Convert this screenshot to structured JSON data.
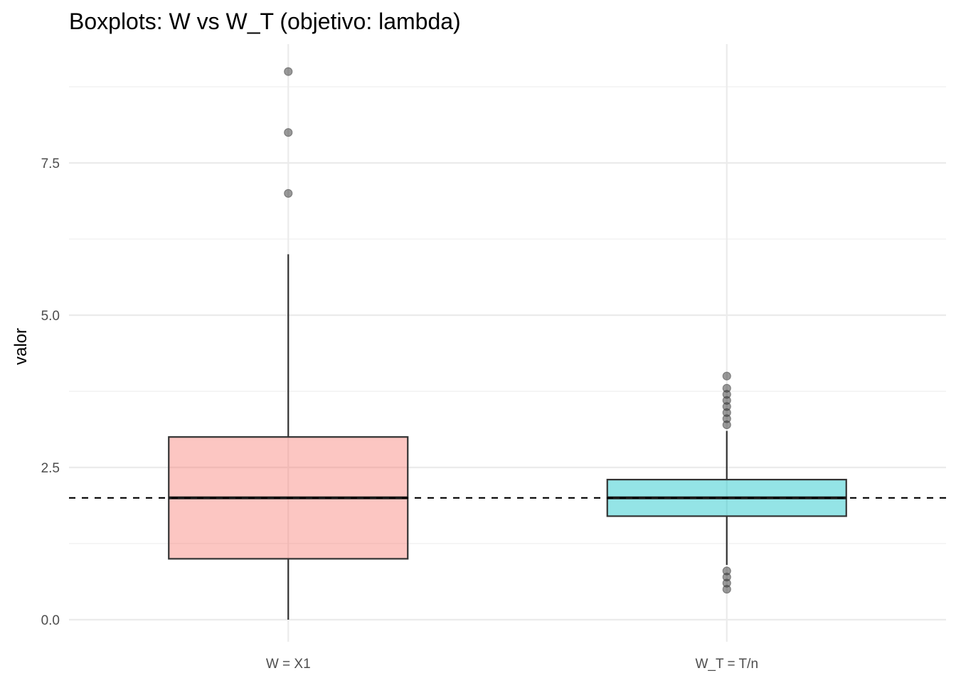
{
  "chart_data": {
    "type": "boxplot",
    "title": "Boxplots: W vs W_T (objetivo: lambda)",
    "xlabel": "",
    "ylabel": "valor",
    "ylim": [
      -0.35,
      9.4
    ],
    "y_ticks": [
      0.0,
      2.5,
      5.0,
      7.5
    ],
    "y_tick_labels": [
      "0.0",
      "2.5",
      "5.0",
      "7.5"
    ],
    "grid": true,
    "legend": "none",
    "reference_line": {
      "y": 2.0,
      "style": "dashed"
    },
    "categories": [
      "W = X1",
      "W_T = T/n"
    ],
    "boxes": [
      {
        "name": "W = X1",
        "color": "#F8766D",
        "min": 0.0,
        "q1": 1.0,
        "median": 2.0,
        "q3": 3.0,
        "max": 6.0,
        "outliers": [
          7,
          8,
          9
        ]
      },
      {
        "name": "W_T = T/n",
        "color": "#00BFC4",
        "min": 0.9,
        "q1": 1.7,
        "median": 2.0,
        "q3": 2.3,
        "max": 3.1,
        "outliers": [
          0.5,
          0.6,
          0.7,
          0.8,
          3.2,
          3.3,
          3.4,
          3.5,
          3.6,
          3.7,
          3.8,
          4.0
        ]
      }
    ]
  }
}
